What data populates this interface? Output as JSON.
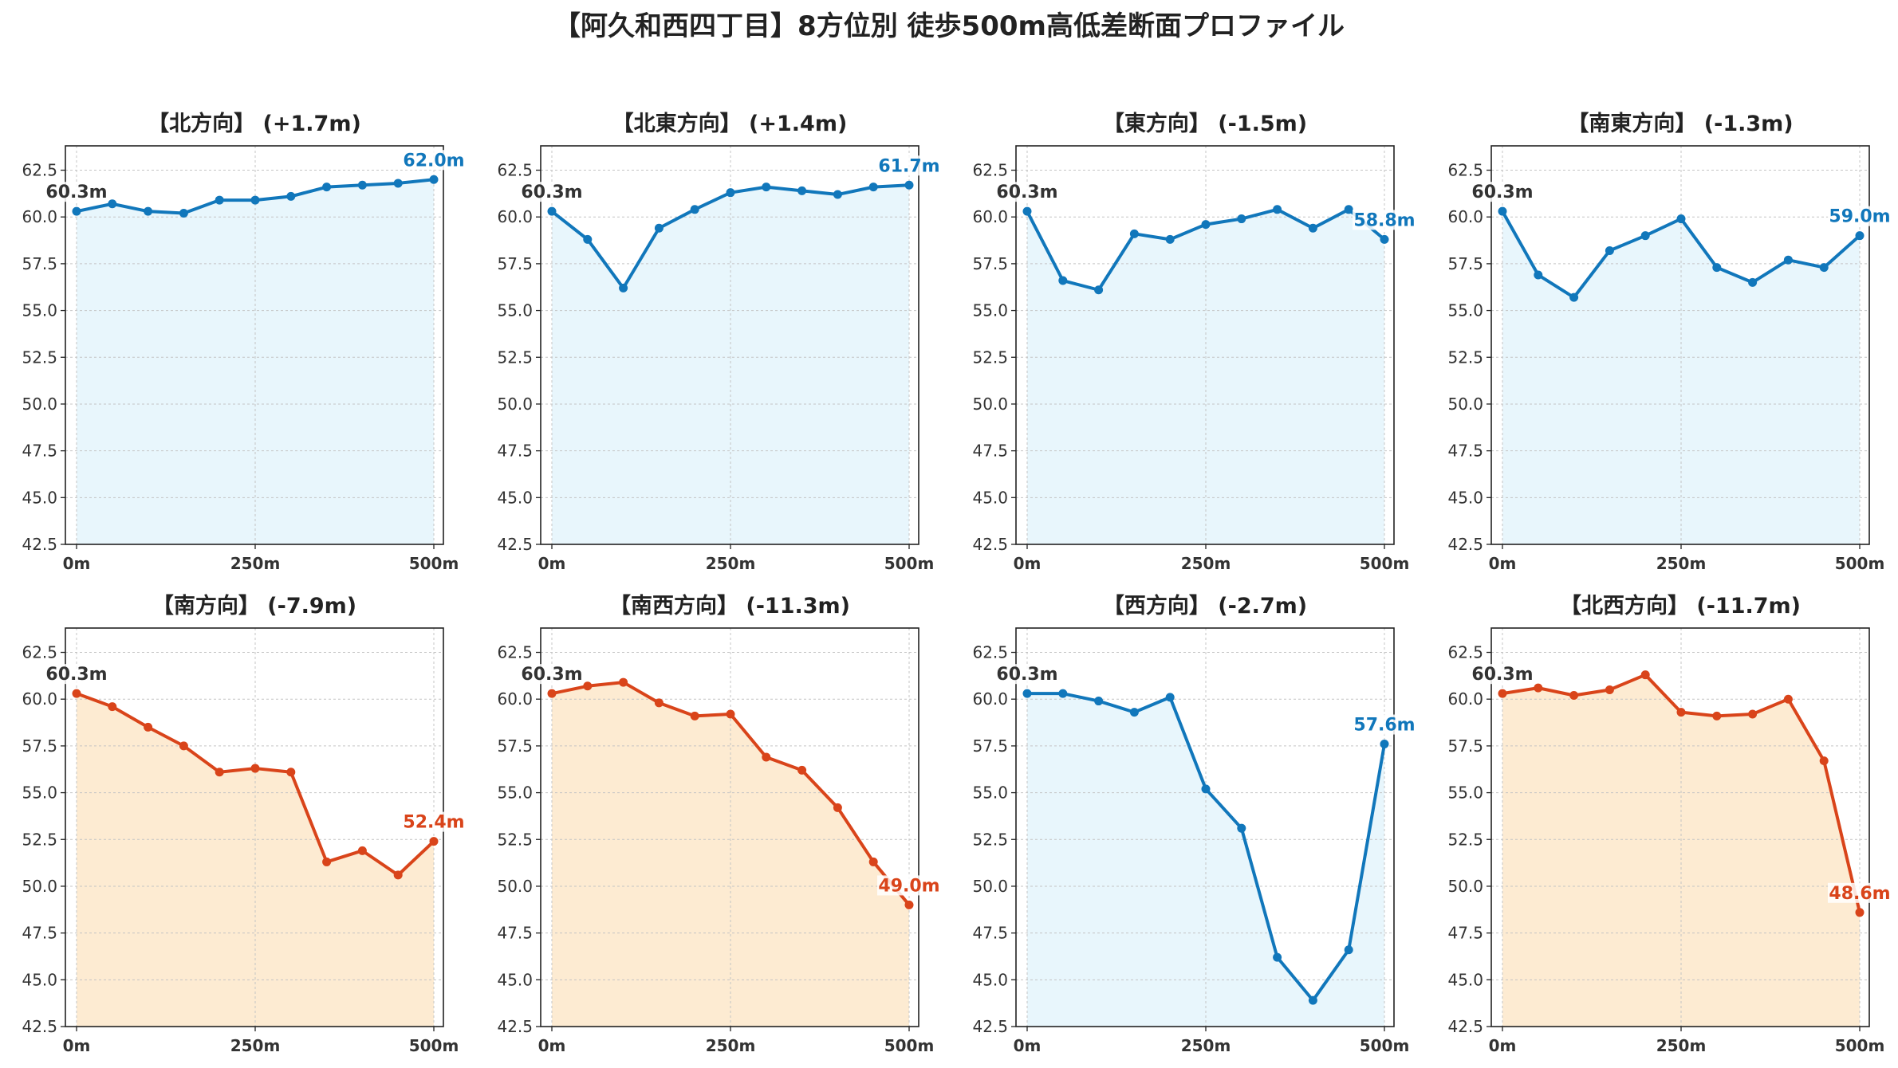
{
  "title": "【阿久和西四丁目】8方位別 徒歩500m高低差断面プロファイル",
  "colors": {
    "up_line": "#1177bb",
    "up_fill": "#e8f6fc",
    "down_line": "#d9441a",
    "down_fill": "#fdebd2",
    "start_label": "#333333"
  },
  "chart_data": [
    {
      "type": "area",
      "title": "【北方向】 (+1.7m)",
      "trend": "up",
      "x": [
        0,
        50,
        100,
        150,
        200,
        250,
        300,
        350,
        400,
        450,
        500
      ],
      "values": [
        60.3,
        60.7,
        60.3,
        60.2,
        60.9,
        60.9,
        61.1,
        61.6,
        61.7,
        61.8,
        62.0
      ],
      "start_label": "60.3m",
      "end_label": "62.0m",
      "ylim": [
        42.5,
        63.8
      ],
      "yticks": [
        "42.5",
        "45.0",
        "47.5",
        "50.0",
        "52.5",
        "55.0",
        "57.5",
        "60.0",
        "62.5"
      ],
      "xticks": [
        "0m",
        "250m",
        "500m"
      ],
      "grid": true
    },
    {
      "type": "area",
      "title": "【北東方向】 (+1.4m)",
      "trend": "up",
      "x": [
        0,
        50,
        100,
        150,
        200,
        250,
        300,
        350,
        400,
        450,
        500
      ],
      "values": [
        60.3,
        58.8,
        56.2,
        59.4,
        60.4,
        61.3,
        61.6,
        61.4,
        61.2,
        61.6,
        61.7
      ],
      "start_label": "60.3m",
      "end_label": "61.7m",
      "ylim": [
        42.5,
        63.8
      ],
      "yticks": [
        "42.5",
        "45.0",
        "47.5",
        "50.0",
        "52.5",
        "55.0",
        "57.5",
        "60.0",
        "62.5"
      ],
      "xticks": [
        "0m",
        "250m",
        "500m"
      ],
      "grid": true
    },
    {
      "type": "area",
      "title": "【東方向】 (-1.5m)",
      "trend": "up",
      "x": [
        0,
        50,
        100,
        150,
        200,
        250,
        300,
        350,
        400,
        450,
        500
      ],
      "values": [
        60.3,
        56.6,
        56.1,
        59.1,
        58.8,
        59.6,
        59.9,
        60.4,
        59.4,
        60.4,
        58.8
      ],
      "start_label": "60.3m",
      "end_label": "58.8m",
      "ylim": [
        42.5,
        63.8
      ],
      "yticks": [
        "42.5",
        "45.0",
        "47.5",
        "50.0",
        "52.5",
        "55.0",
        "57.5",
        "60.0",
        "62.5"
      ],
      "xticks": [
        "0m",
        "250m",
        "500m"
      ],
      "grid": true
    },
    {
      "type": "area",
      "title": "【南東方向】 (-1.3m)",
      "trend": "up",
      "x": [
        0,
        50,
        100,
        150,
        200,
        250,
        300,
        350,
        400,
        450,
        500
      ],
      "values": [
        60.3,
        56.9,
        55.7,
        58.2,
        59.0,
        59.9,
        57.3,
        56.5,
        57.7,
        57.3,
        59.0
      ],
      "start_label": "60.3m",
      "end_label": "59.0m",
      "ylim": [
        42.5,
        63.8
      ],
      "yticks": [
        "42.5",
        "45.0",
        "47.5",
        "50.0",
        "52.5",
        "55.0",
        "57.5",
        "60.0",
        "62.5"
      ],
      "xticks": [
        "0m",
        "250m",
        "500m"
      ],
      "grid": true
    },
    {
      "type": "area",
      "title": "【南方向】 (-7.9m)",
      "trend": "down",
      "x": [
        0,
        50,
        100,
        150,
        200,
        250,
        300,
        350,
        400,
        450,
        500
      ],
      "values": [
        60.3,
        59.6,
        58.5,
        57.5,
        56.1,
        56.3,
        56.1,
        51.3,
        51.9,
        50.6,
        52.4
      ],
      "start_label": "60.3m",
      "end_label": "52.4m",
      "ylim": [
        42.5,
        63.8
      ],
      "yticks": [
        "42.5",
        "45.0",
        "47.5",
        "50.0",
        "52.5",
        "55.0",
        "57.5",
        "60.0",
        "62.5"
      ],
      "xticks": [
        "0m",
        "250m",
        "500m"
      ],
      "grid": true
    },
    {
      "type": "area",
      "title": "【南西方向】 (-11.3m)",
      "trend": "down",
      "x": [
        0,
        50,
        100,
        150,
        200,
        250,
        300,
        350,
        400,
        450,
        500
      ],
      "values": [
        60.3,
        60.7,
        60.9,
        59.8,
        59.1,
        59.2,
        56.9,
        56.2,
        54.2,
        51.3,
        49.0
      ],
      "start_label": "60.3m",
      "end_label": "49.0m",
      "ylim": [
        42.5,
        63.8
      ],
      "yticks": [
        "42.5",
        "45.0",
        "47.5",
        "50.0",
        "52.5",
        "55.0",
        "57.5",
        "60.0",
        "62.5"
      ],
      "xticks": [
        "0m",
        "250m",
        "500m"
      ],
      "grid": true
    },
    {
      "type": "area",
      "title": "【西方向】 (-2.7m)",
      "trend": "up",
      "x": [
        0,
        50,
        100,
        150,
        200,
        250,
        300,
        350,
        400,
        450,
        500
      ],
      "values": [
        60.3,
        60.3,
        59.9,
        59.3,
        60.1,
        55.2,
        53.1,
        46.2,
        43.9,
        46.6,
        57.6
      ],
      "start_label": "60.3m",
      "end_label": "57.6m",
      "ylim": [
        42.5,
        63.8
      ],
      "yticks": [
        "42.5",
        "45.0",
        "47.5",
        "50.0",
        "52.5",
        "55.0",
        "57.5",
        "60.0",
        "62.5"
      ],
      "xticks": [
        "0m",
        "250m",
        "500m"
      ],
      "grid": true
    },
    {
      "type": "area",
      "title": "【北西方向】 (-11.7m)",
      "trend": "down",
      "x": [
        0,
        50,
        100,
        150,
        200,
        250,
        300,
        350,
        400,
        450,
        500
      ],
      "values": [
        60.3,
        60.6,
        60.2,
        60.5,
        61.3,
        59.3,
        59.1,
        59.2,
        60.0,
        56.7,
        48.6
      ],
      "start_label": "60.3m",
      "end_label": "48.6m",
      "ylim": [
        42.5,
        63.8
      ],
      "yticks": [
        "42.5",
        "45.0",
        "47.5",
        "50.0",
        "52.5",
        "55.0",
        "57.5",
        "60.0",
        "62.5"
      ],
      "xticks": [
        "0m",
        "250m",
        "500m"
      ],
      "grid": true
    }
  ]
}
